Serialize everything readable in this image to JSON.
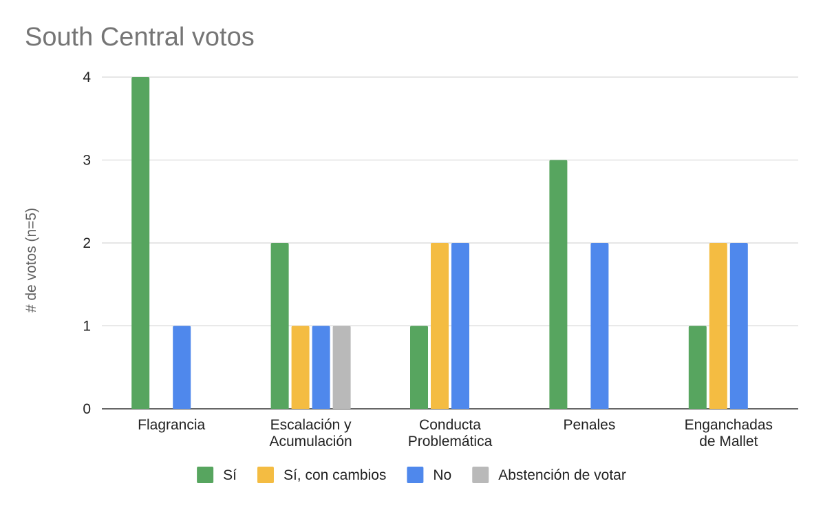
{
  "chart_data": {
    "type": "bar",
    "title": "South Central votos",
    "xlabel": "",
    "ylabel": "# de votos (n=5)",
    "ylim": [
      0,
      4
    ],
    "yticks": [
      "0",
      "1",
      "2",
      "3",
      "4"
    ],
    "grid": true,
    "legend_position": "bottom",
    "categories": [
      [
        "Flagrancia"
      ],
      [
        "Escalación y",
        "Acumulación"
      ],
      [
        "Conducta",
        "Problemática"
      ],
      [
        "Penales"
      ],
      [
        "Enganchadas",
        "de Mallet"
      ]
    ],
    "series": [
      {
        "name": "Sí",
        "color": "#57a55f",
        "values": [
          4,
          2,
          1,
          3,
          1
        ]
      },
      {
        "name": "Sí, con cambios",
        "color": "#f4bc42",
        "values": [
          0,
          1,
          2,
          0,
          2
        ]
      },
      {
        "name": "No",
        "color": "#4f88ec",
        "values": [
          1,
          1,
          2,
          2,
          2
        ]
      },
      {
        "name": "Abstención de votar",
        "color": "#b9b9b9",
        "values": [
          0,
          1,
          0,
          0,
          0
        ]
      }
    ]
  }
}
